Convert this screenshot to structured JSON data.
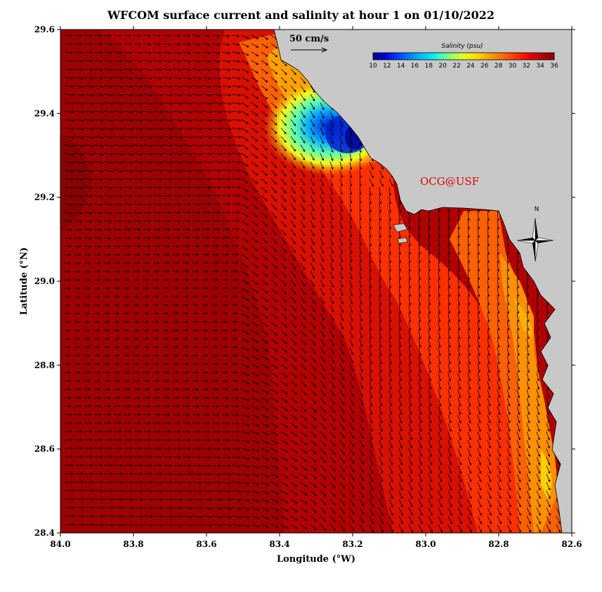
{
  "title": "WFCOM surface current and salinity at hour 1 on 01/10/2022",
  "credit": "OCG@USF",
  "scale": {
    "label": "50 cm/s"
  },
  "north_arrow": {
    "label": "N"
  },
  "colorbar": {
    "title": "Salinity (psu)",
    "ticks": [
      "10",
      "12",
      "14",
      "16",
      "18",
      "20",
      "22",
      "24",
      "26",
      "28",
      "30",
      "32",
      "34",
      "36"
    ],
    "range": [
      10,
      36
    ],
    "colors": [
      "#00008f",
      "#0000d0",
      "#0030ff",
      "#0070ff",
      "#00b0ff",
      "#00e0ff",
      "#40ffc0",
      "#a0ff60",
      "#e0ff20",
      "#ffe000",
      "#ffb000",
      "#ff8000",
      "#ff5000",
      "#ff2000",
      "#e00000",
      "#b00000",
      "#8f0000"
    ]
  },
  "axes": {
    "xlabel": "Longitude (°W)",
    "ylabel": "Latitude (°N)",
    "x_ticks": [
      "84.0",
      "83.8",
      "83.6",
      "83.4",
      "83.2",
      "83.0",
      "82.8",
      "82.6"
    ],
    "y_ticks": [
      "29.6",
      "29.4",
      "29.2",
      "29.0",
      "28.8",
      "28.6",
      "28.4"
    ],
    "xlim": [
      84.0,
      82.6
    ],
    "ylim": [
      28.4,
      29.6
    ]
  },
  "colors": {
    "land": "#c8c8c8",
    "low_salinity": "#0010c0",
    "open_gulf": "#a00000",
    "nearshore": "#ffb000"
  }
}
